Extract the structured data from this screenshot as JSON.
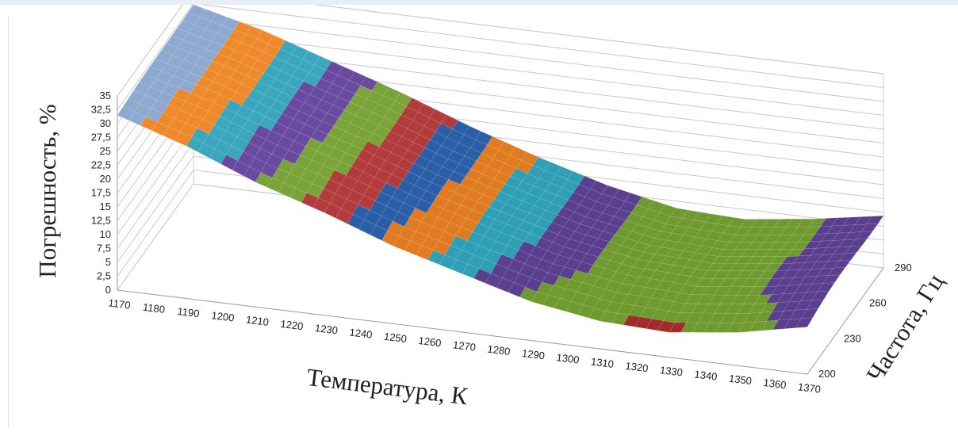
{
  "chart_data": {
    "type": "surface",
    "xlabel": "Температура, К",
    "ylabel": "Частота, Гц",
    "zlabel": "Погрешность, %",
    "x_ticks": [
      "1170",
      "1180",
      "1190",
      "1200",
      "1210",
      "1220",
      "1230",
      "1240",
      "1250",
      "1260",
      "1270",
      "1280",
      "1290",
      "1300",
      "1310",
      "1320",
      "1330",
      "1340",
      "1350",
      "1360",
      "1370"
    ],
    "y_ticks": [
      "200",
      "230",
      "260",
      "290"
    ],
    "z_ticks": [
      "0",
      "2,5",
      "5",
      "7,5",
      "10",
      "12,5",
      "15",
      "17,5",
      "20",
      "22,5",
      "25",
      "27,5",
      "30",
      "32,5",
      "35"
    ],
    "x_range": [
      1170,
      1370
    ],
    "y_range": [
      200,
      290
    ],
    "z_range": [
      0,
      35
    ],
    "z_step": 2.5,
    "surface_profile": {
      "x": [
        1170,
        1190,
        1210,
        1230,
        1250,
        1270,
        1290,
        1310,
        1330,
        1350,
        1370
      ],
      "error_at_200Hz": [
        31.5,
        27.5,
        22.5,
        18.5,
        14.0,
        10.5,
        7.0,
        5.0,
        4.5,
        6.0,
        8.5
      ],
      "error_at_290Hz": [
        32.5,
        29.5,
        25.5,
        21.5,
        17.0,
        13.0,
        9.5,
        7.0,
        6.5,
        8.0,
        10.0
      ]
    },
    "band_colors": [
      "#1f4e8c",
      "#a02c2c",
      "#6e9a2f",
      "#5b3f8f",
      "#2e9fb5",
      "#e07b22",
      "#2a5fa8",
      "#b23b3b",
      "#7aa33a",
      "#6a4aa0",
      "#3aa7bd",
      "#ee8a2c",
      "#8ea9cf",
      "#d69aa0"
    ],
    "grid": true
  }
}
